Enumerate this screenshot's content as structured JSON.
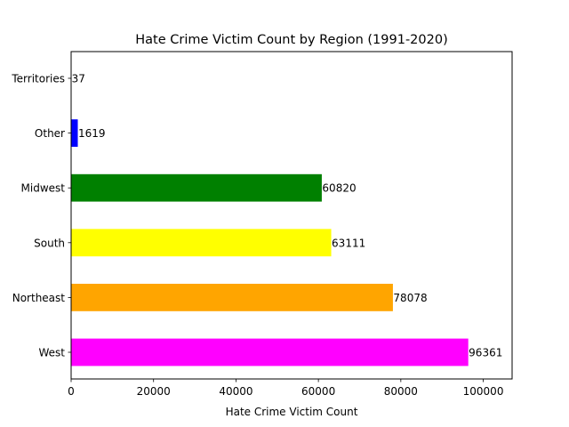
{
  "chart_data": {
    "type": "bar",
    "orientation": "horizontal",
    "title": "Hate Crime Victim Count by Region (1991-2020)",
    "xlabel": "Hate Crime Victim Count",
    "ylabel": "",
    "xlim": [
      0,
      107000
    ],
    "xticks": [
      0,
      20000,
      40000,
      60000,
      80000,
      100000
    ],
    "grid": false,
    "legend": "none",
    "categories": [
      "West",
      "Northeast",
      "South",
      "Midwest",
      "Other",
      "Territories"
    ],
    "values": [
      96361,
      78078,
      63111,
      60820,
      1619,
      37
    ],
    "colors": [
      "#ff00ff",
      "#ffa500",
      "#ffff00",
      "#008000",
      "#0000ff",
      "#00bfbf"
    ]
  }
}
